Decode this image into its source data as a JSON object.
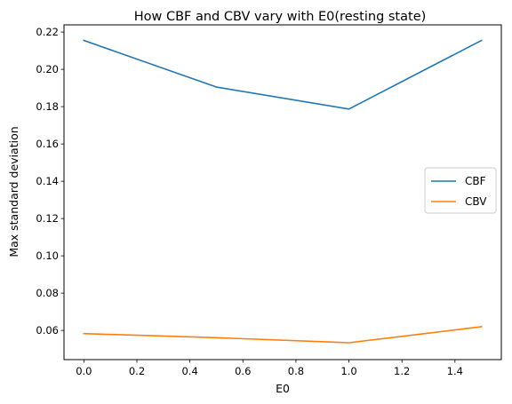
{
  "chart_data": {
    "type": "line",
    "title": "How CBF and CBV vary with E0(resting state)",
    "xlabel": "E0",
    "ylabel": "Max standard deviation",
    "x": [
      0.0,
      0.5,
      1.0,
      1.5
    ],
    "series": [
      {
        "name": "CBF",
        "color": "#1f77b4",
        "values": [
          0.2155,
          0.1905,
          0.1787,
          0.2155
        ]
      },
      {
        "name": "CBV",
        "color": "#ff7f0e",
        "values": [
          0.0583,
          0.0561,
          0.0534,
          0.062
        ]
      }
    ],
    "xlim": [
      -0.075,
      1.575
    ],
    "ylim": [
      0.04436,
      0.22385
    ],
    "xticks": [
      0.0,
      0.2,
      0.4,
      0.6,
      0.8,
      1.0,
      1.2,
      1.4
    ],
    "xtick_labels": [
      "0.0",
      "0.2",
      "0.4",
      "0.6",
      "0.8",
      "1.0",
      "1.2",
      "1.4"
    ],
    "yticks": [
      0.06,
      0.08,
      0.1,
      0.12,
      0.14,
      0.16,
      0.18,
      0.2,
      0.22
    ],
    "ytick_labels": [
      "0.06",
      "0.08",
      "0.10",
      "0.12",
      "0.14",
      "0.16",
      "0.18",
      "0.20",
      "0.22"
    ],
    "grid": false,
    "legend": "center-right"
  }
}
